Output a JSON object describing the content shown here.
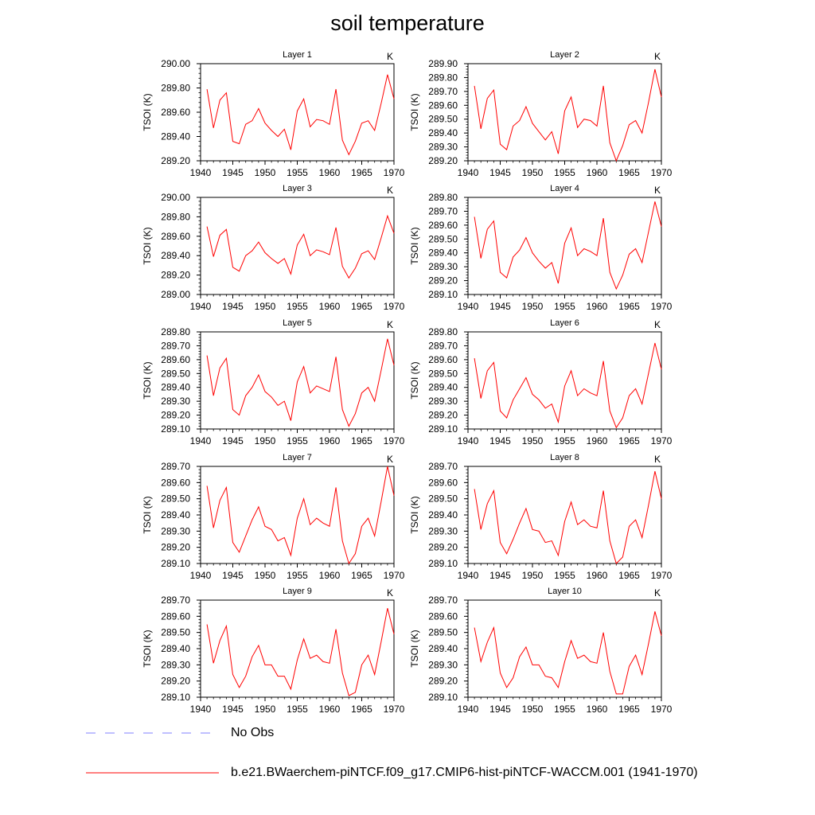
{
  "title": "soil temperature",
  "panel_ylabel": "TSOI  (K)",
  "panel_unit": "K",
  "legend": [
    {
      "label": "No Obs",
      "color": "#8080ff",
      "style": "dashed"
    },
    {
      "label": "b.e21.BWaerchem-piNTCF.f09_g17.CMIP6-hist-piNTCF-WACCM.001 (1941-1970)",
      "color": "#ff0000",
      "style": "solid"
    }
  ],
  "chart_data": [
    {
      "type": "line",
      "title": "Layer 1",
      "ylabel": "TSOI  (K)",
      "xlim": [
        1940,
        1970
      ],
      "ylim": [
        289.2,
        290.0
      ],
      "yticks": [
        "290.00",
        "289.80",
        "289.60",
        "289.40",
        "289.20"
      ],
      "xticks": [
        "1940",
        "1945",
        "1950",
        "1955",
        "1960",
        "1965",
        "1970"
      ],
      "x": [
        1941,
        1942,
        1943,
        1944,
        1945,
        1946,
        1947,
        1948,
        1949,
        1950,
        1951,
        1952,
        1953,
        1954,
        1955,
        1956,
        1957,
        1958,
        1959,
        1960,
        1961,
        1962,
        1963,
        1964,
        1965,
        1966,
        1967,
        1968,
        1969,
        1970
      ],
      "series": [
        {
          "name": "b.e21.BWaerchem-piNTCF.f09_g17.CMIP6-hist-piNTCF-WACCM.001 (1941-1970)",
          "color": "#ff0000",
          "values": [
            289.79,
            289.47,
            289.7,
            289.76,
            289.36,
            289.34,
            289.5,
            289.53,
            289.63,
            289.51,
            289.45,
            289.4,
            289.46,
            289.29,
            289.61,
            289.71,
            289.48,
            289.54,
            289.53,
            289.5,
            289.79,
            289.37,
            289.25,
            289.36,
            289.51,
            289.53,
            289.45,
            289.67,
            289.91,
            289.71
          ]
        }
      ]
    },
    {
      "type": "line",
      "title": "Layer 2",
      "ylabel": "TSOI  (K)",
      "xlim": [
        1940,
        1970
      ],
      "ylim": [
        289.2,
        289.9
      ],
      "yticks": [
        "289.90",
        "289.80",
        "289.70",
        "289.60",
        "289.50",
        "289.40",
        "289.30",
        "289.20"
      ],
      "xticks": [
        "1940",
        "1945",
        "1950",
        "1955",
        "1960",
        "1965",
        "1970"
      ],
      "x": [
        1941,
        1942,
        1943,
        1944,
        1945,
        1946,
        1947,
        1948,
        1949,
        1950,
        1951,
        1952,
        1953,
        1954,
        1955,
        1956,
        1957,
        1958,
        1959,
        1960,
        1961,
        1962,
        1963,
        1964,
        1965,
        1966,
        1967,
        1968,
        1969,
        1970
      ],
      "series": [
        {
          "name": "b.e21.BWaerchem-piNTCF.f09_g17.CMIP6-hist-piNTCF-WACCM.001 (1941-1970)",
          "color": "#ff0000",
          "values": [
            289.74,
            289.43,
            289.65,
            289.71,
            289.32,
            289.28,
            289.45,
            289.49,
            289.59,
            289.47,
            289.41,
            289.35,
            289.41,
            289.25,
            289.56,
            289.66,
            289.44,
            289.5,
            289.49,
            289.45,
            289.74,
            289.33,
            289.2,
            289.31,
            289.46,
            289.49,
            289.4,
            289.62,
            289.86,
            289.66
          ]
        }
      ]
    },
    {
      "type": "line",
      "title": "Layer 3",
      "ylabel": "TSOI  (K)",
      "xlim": [
        1940,
        1970
      ],
      "ylim": [
        289.0,
        290.0
      ],
      "yticks": [
        "290.00",
        "289.80",
        "289.60",
        "289.40",
        "289.20",
        "289.00"
      ],
      "xticks": [
        "1940",
        "1945",
        "1950",
        "1955",
        "1960",
        "1965",
        "1970"
      ],
      "x": [
        1941,
        1942,
        1943,
        1944,
        1945,
        1946,
        1947,
        1948,
        1949,
        1950,
        1951,
        1952,
        1953,
        1954,
        1955,
        1956,
        1957,
        1958,
        1959,
        1960,
        1961,
        1962,
        1963,
        1964,
        1965,
        1966,
        1967,
        1968,
        1969,
        1970
      ],
      "series": [
        {
          "name": "b.e21.BWaerchem-piNTCF.f09_g17.CMIP6-hist-piNTCF-WACCM.001 (1941-1970)",
          "color": "#ff0000",
          "values": [
            289.7,
            289.39,
            289.61,
            289.67,
            289.28,
            289.24,
            289.4,
            289.45,
            289.54,
            289.43,
            289.37,
            289.32,
            289.37,
            289.21,
            289.51,
            289.62,
            289.4,
            289.46,
            289.44,
            289.41,
            289.69,
            289.29,
            289.17,
            289.27,
            289.42,
            289.45,
            289.36,
            289.58,
            289.81,
            289.63
          ]
        }
      ]
    },
    {
      "type": "line",
      "title": "Layer 4",
      "ylabel": "TSOI  (K)",
      "xlim": [
        1940,
        1970
      ],
      "ylim": [
        289.1,
        289.8
      ],
      "yticks": [
        "289.80",
        "289.70",
        "289.60",
        "289.50",
        "289.40",
        "289.30",
        "289.20",
        "289.10"
      ],
      "xticks": [
        "1940",
        "1945",
        "1950",
        "1955",
        "1960",
        "1965",
        "1970"
      ],
      "x": [
        1941,
        1942,
        1943,
        1944,
        1945,
        1946,
        1947,
        1948,
        1949,
        1950,
        1951,
        1952,
        1953,
        1954,
        1955,
        1956,
        1957,
        1958,
        1959,
        1960,
        1961,
        1962,
        1963,
        1964,
        1965,
        1966,
        1967,
        1968,
        1969,
        1970
      ],
      "series": [
        {
          "name": "b.e21.BWaerchem-piNTCF.f09_g17.CMIP6-hist-piNTCF-WACCM.001 (1941-1970)",
          "color": "#ff0000",
          "values": [
            289.66,
            289.36,
            289.57,
            289.63,
            289.26,
            289.22,
            289.37,
            289.42,
            289.51,
            289.4,
            289.34,
            289.29,
            289.33,
            289.18,
            289.47,
            289.58,
            289.38,
            289.43,
            289.41,
            289.38,
            289.65,
            289.26,
            289.14,
            289.24,
            289.39,
            289.43,
            289.33,
            289.55,
            289.77,
            289.59
          ]
        }
      ]
    },
    {
      "type": "line",
      "title": "Layer 5",
      "ylabel": "TSOI  (K)",
      "xlim": [
        1940,
        1970
      ],
      "ylim": [
        289.1,
        289.8
      ],
      "yticks": [
        "289.80",
        "289.70",
        "289.60",
        "289.50",
        "289.40",
        "289.30",
        "289.20",
        "289.10"
      ],
      "xticks": [
        "1940",
        "1945",
        "1950",
        "1955",
        "1960",
        "1965",
        "1970"
      ],
      "x": [
        1941,
        1942,
        1943,
        1944,
        1945,
        1946,
        1947,
        1948,
        1949,
        1950,
        1951,
        1952,
        1953,
        1954,
        1955,
        1956,
        1957,
        1958,
        1959,
        1960,
        1961,
        1962,
        1963,
        1964,
        1965,
        1966,
        1967,
        1968,
        1969,
        1970
      ],
      "series": [
        {
          "name": "b.e21.BWaerchem-piNTCF.f09_g17.CMIP6-hist-piNTCF-WACCM.001 (1941-1970)",
          "color": "#ff0000",
          "values": [
            289.63,
            289.34,
            289.54,
            289.61,
            289.24,
            289.2,
            289.34,
            289.4,
            289.49,
            289.37,
            289.33,
            289.27,
            289.3,
            289.16,
            289.44,
            289.55,
            289.36,
            289.41,
            289.39,
            289.37,
            289.62,
            289.24,
            289.12,
            289.21,
            289.36,
            289.4,
            289.3,
            289.52,
            289.75,
            289.56
          ]
        }
      ]
    },
    {
      "type": "line",
      "title": "Layer 6",
      "ylabel": "TSOI  (K)",
      "xlim": [
        1940,
        1970
      ],
      "ylim": [
        289.1,
        289.8
      ],
      "yticks": [
        "289.80",
        "289.70",
        "289.60",
        "289.50",
        "289.40",
        "289.30",
        "289.20",
        "289.10"
      ],
      "xticks": [
        "1940",
        "1945",
        "1950",
        "1955",
        "1960",
        "1965",
        "1970"
      ],
      "x": [
        1941,
        1942,
        1943,
        1944,
        1945,
        1946,
        1947,
        1948,
        1949,
        1950,
        1951,
        1952,
        1953,
        1954,
        1955,
        1956,
        1957,
        1958,
        1959,
        1960,
        1961,
        1962,
        1963,
        1964,
        1965,
        1966,
        1967,
        1968,
        1969,
        1970
      ],
      "series": [
        {
          "name": "b.e21.BWaerchem-piNTCF.f09_g17.CMIP6-hist-piNTCF-WACCM.001 (1941-1970)",
          "color": "#ff0000",
          "values": [
            289.61,
            289.32,
            289.52,
            289.58,
            289.23,
            289.18,
            289.31,
            289.39,
            289.47,
            289.35,
            289.31,
            289.25,
            289.28,
            289.15,
            289.41,
            289.52,
            289.34,
            289.39,
            289.36,
            289.34,
            289.59,
            289.23,
            289.11,
            289.18,
            289.34,
            289.39,
            289.28,
            289.5,
            289.72,
            289.53
          ]
        }
      ]
    },
    {
      "type": "line",
      "title": "Layer 7",
      "ylabel": "TSOI  (K)",
      "xlim": [
        1940,
        1970
      ],
      "ylim": [
        289.1,
        289.7
      ],
      "yticks": [
        "289.70",
        "289.60",
        "289.50",
        "289.40",
        "289.30",
        "289.20",
        "289.10"
      ],
      "xticks": [
        "1940",
        "1945",
        "1950",
        "1955",
        "1960",
        "1965",
        "1970"
      ],
      "x": [
        1941,
        1942,
        1943,
        1944,
        1945,
        1946,
        1947,
        1948,
        1949,
        1950,
        1951,
        1952,
        1953,
        1954,
        1955,
        1956,
        1957,
        1958,
        1959,
        1960,
        1961,
        1962,
        1963,
        1964,
        1965,
        1966,
        1967,
        1968,
        1969,
        1970
      ],
      "series": [
        {
          "name": "b.e21.BWaerchem-piNTCF.f09_g17.CMIP6-hist-piNTCF-WACCM.001 (1941-1970)",
          "color": "#ff0000",
          "values": [
            289.58,
            289.32,
            289.49,
            289.57,
            289.23,
            289.17,
            289.27,
            289.37,
            289.45,
            289.33,
            289.31,
            289.24,
            289.26,
            289.15,
            289.38,
            289.5,
            289.34,
            289.38,
            289.35,
            289.33,
            289.57,
            289.24,
            289.1,
            289.16,
            289.33,
            289.38,
            289.27,
            289.48,
            289.7,
            289.52
          ]
        }
      ]
    },
    {
      "type": "line",
      "title": "Layer 8",
      "ylabel": "TSOI  (K)",
      "xlim": [
        1940,
        1970
      ],
      "ylim": [
        289.1,
        289.7
      ],
      "yticks": [
        "289.70",
        "289.60",
        "289.50",
        "289.40",
        "289.30",
        "289.20",
        "289.10"
      ],
      "xticks": [
        "1940",
        "1945",
        "1950",
        "1955",
        "1960",
        "1965",
        "1970"
      ],
      "x": [
        1941,
        1942,
        1943,
        1944,
        1945,
        1946,
        1947,
        1948,
        1949,
        1950,
        1951,
        1952,
        1953,
        1954,
        1955,
        1956,
        1957,
        1958,
        1959,
        1960,
        1961,
        1962,
        1963,
        1964,
        1965,
        1966,
        1967,
        1968,
        1969,
        1970
      ],
      "series": [
        {
          "name": "b.e21.BWaerchem-piNTCF.f09_g17.CMIP6-hist-piNTCF-WACCM.001 (1941-1970)",
          "color": "#ff0000",
          "values": [
            289.56,
            289.31,
            289.47,
            289.55,
            289.23,
            289.16,
            289.25,
            289.35,
            289.44,
            289.31,
            289.3,
            289.23,
            289.24,
            289.15,
            289.36,
            289.48,
            289.34,
            289.37,
            289.33,
            289.32,
            289.55,
            289.24,
            289.1,
            289.14,
            289.33,
            289.37,
            289.26,
            289.46,
            289.67,
            289.5
          ]
        }
      ]
    },
    {
      "type": "line",
      "title": "Layer 9",
      "ylabel": "TSOI  (K)",
      "xlim": [
        1940,
        1970
      ],
      "ylim": [
        289.1,
        289.7
      ],
      "yticks": [
        "289.70",
        "289.60",
        "289.50",
        "289.40",
        "289.30",
        "289.20",
        "289.10"
      ],
      "xticks": [
        "1940",
        "1945",
        "1950",
        "1955",
        "1960",
        "1965",
        "1970"
      ],
      "x": [
        1941,
        1942,
        1943,
        1944,
        1945,
        1946,
        1947,
        1948,
        1949,
        1950,
        1951,
        1952,
        1953,
        1954,
        1955,
        1956,
        1957,
        1958,
        1959,
        1960,
        1961,
        1962,
        1963,
        1964,
        1965,
        1966,
        1967,
        1968,
        1969,
        1970
      ],
      "series": [
        {
          "name": "b.e21.BWaerchem-piNTCF.f09_g17.CMIP6-hist-piNTCF-WACCM.001 (1941-1970)",
          "color": "#ff0000",
          "values": [
            289.55,
            289.31,
            289.45,
            289.54,
            289.24,
            289.16,
            289.23,
            289.35,
            289.42,
            289.3,
            289.3,
            289.23,
            289.23,
            289.15,
            289.33,
            289.46,
            289.34,
            289.36,
            289.32,
            289.31,
            289.52,
            289.25,
            289.11,
            289.13,
            289.3,
            289.36,
            289.24,
            289.44,
            289.65,
            289.49
          ]
        }
      ]
    },
    {
      "type": "line",
      "title": "Layer 10",
      "ylabel": "TSOI  (K)",
      "xlim": [
        1940,
        1970
      ],
      "ylim": [
        289.1,
        289.7
      ],
      "yticks": [
        "289.70",
        "289.60",
        "289.50",
        "289.40",
        "289.30",
        "289.20",
        "289.10"
      ],
      "xticks": [
        "1940",
        "1945",
        "1950",
        "1955",
        "1960",
        "1965",
        "1970"
      ],
      "x": [
        1941,
        1942,
        1943,
        1944,
        1945,
        1946,
        1947,
        1948,
        1949,
        1950,
        1951,
        1952,
        1953,
        1954,
        1955,
        1956,
        1957,
        1958,
        1959,
        1960,
        1961,
        1962,
        1963,
        1964,
        1965,
        1966,
        1967,
        1968,
        1969,
        1970
      ],
      "series": [
        {
          "name": "b.e21.BWaerchem-piNTCF.f09_g17.CMIP6-hist-piNTCF-WACCM.001 (1941-1970)",
          "color": "#ff0000",
          "values": [
            289.53,
            289.32,
            289.44,
            289.53,
            289.25,
            289.16,
            289.22,
            289.35,
            289.41,
            289.3,
            289.3,
            289.23,
            289.22,
            289.16,
            289.32,
            289.45,
            289.34,
            289.36,
            289.32,
            289.31,
            289.5,
            289.26,
            289.12,
            289.12,
            289.29,
            289.36,
            289.24,
            289.43,
            289.63,
            289.48
          ]
        }
      ]
    }
  ]
}
